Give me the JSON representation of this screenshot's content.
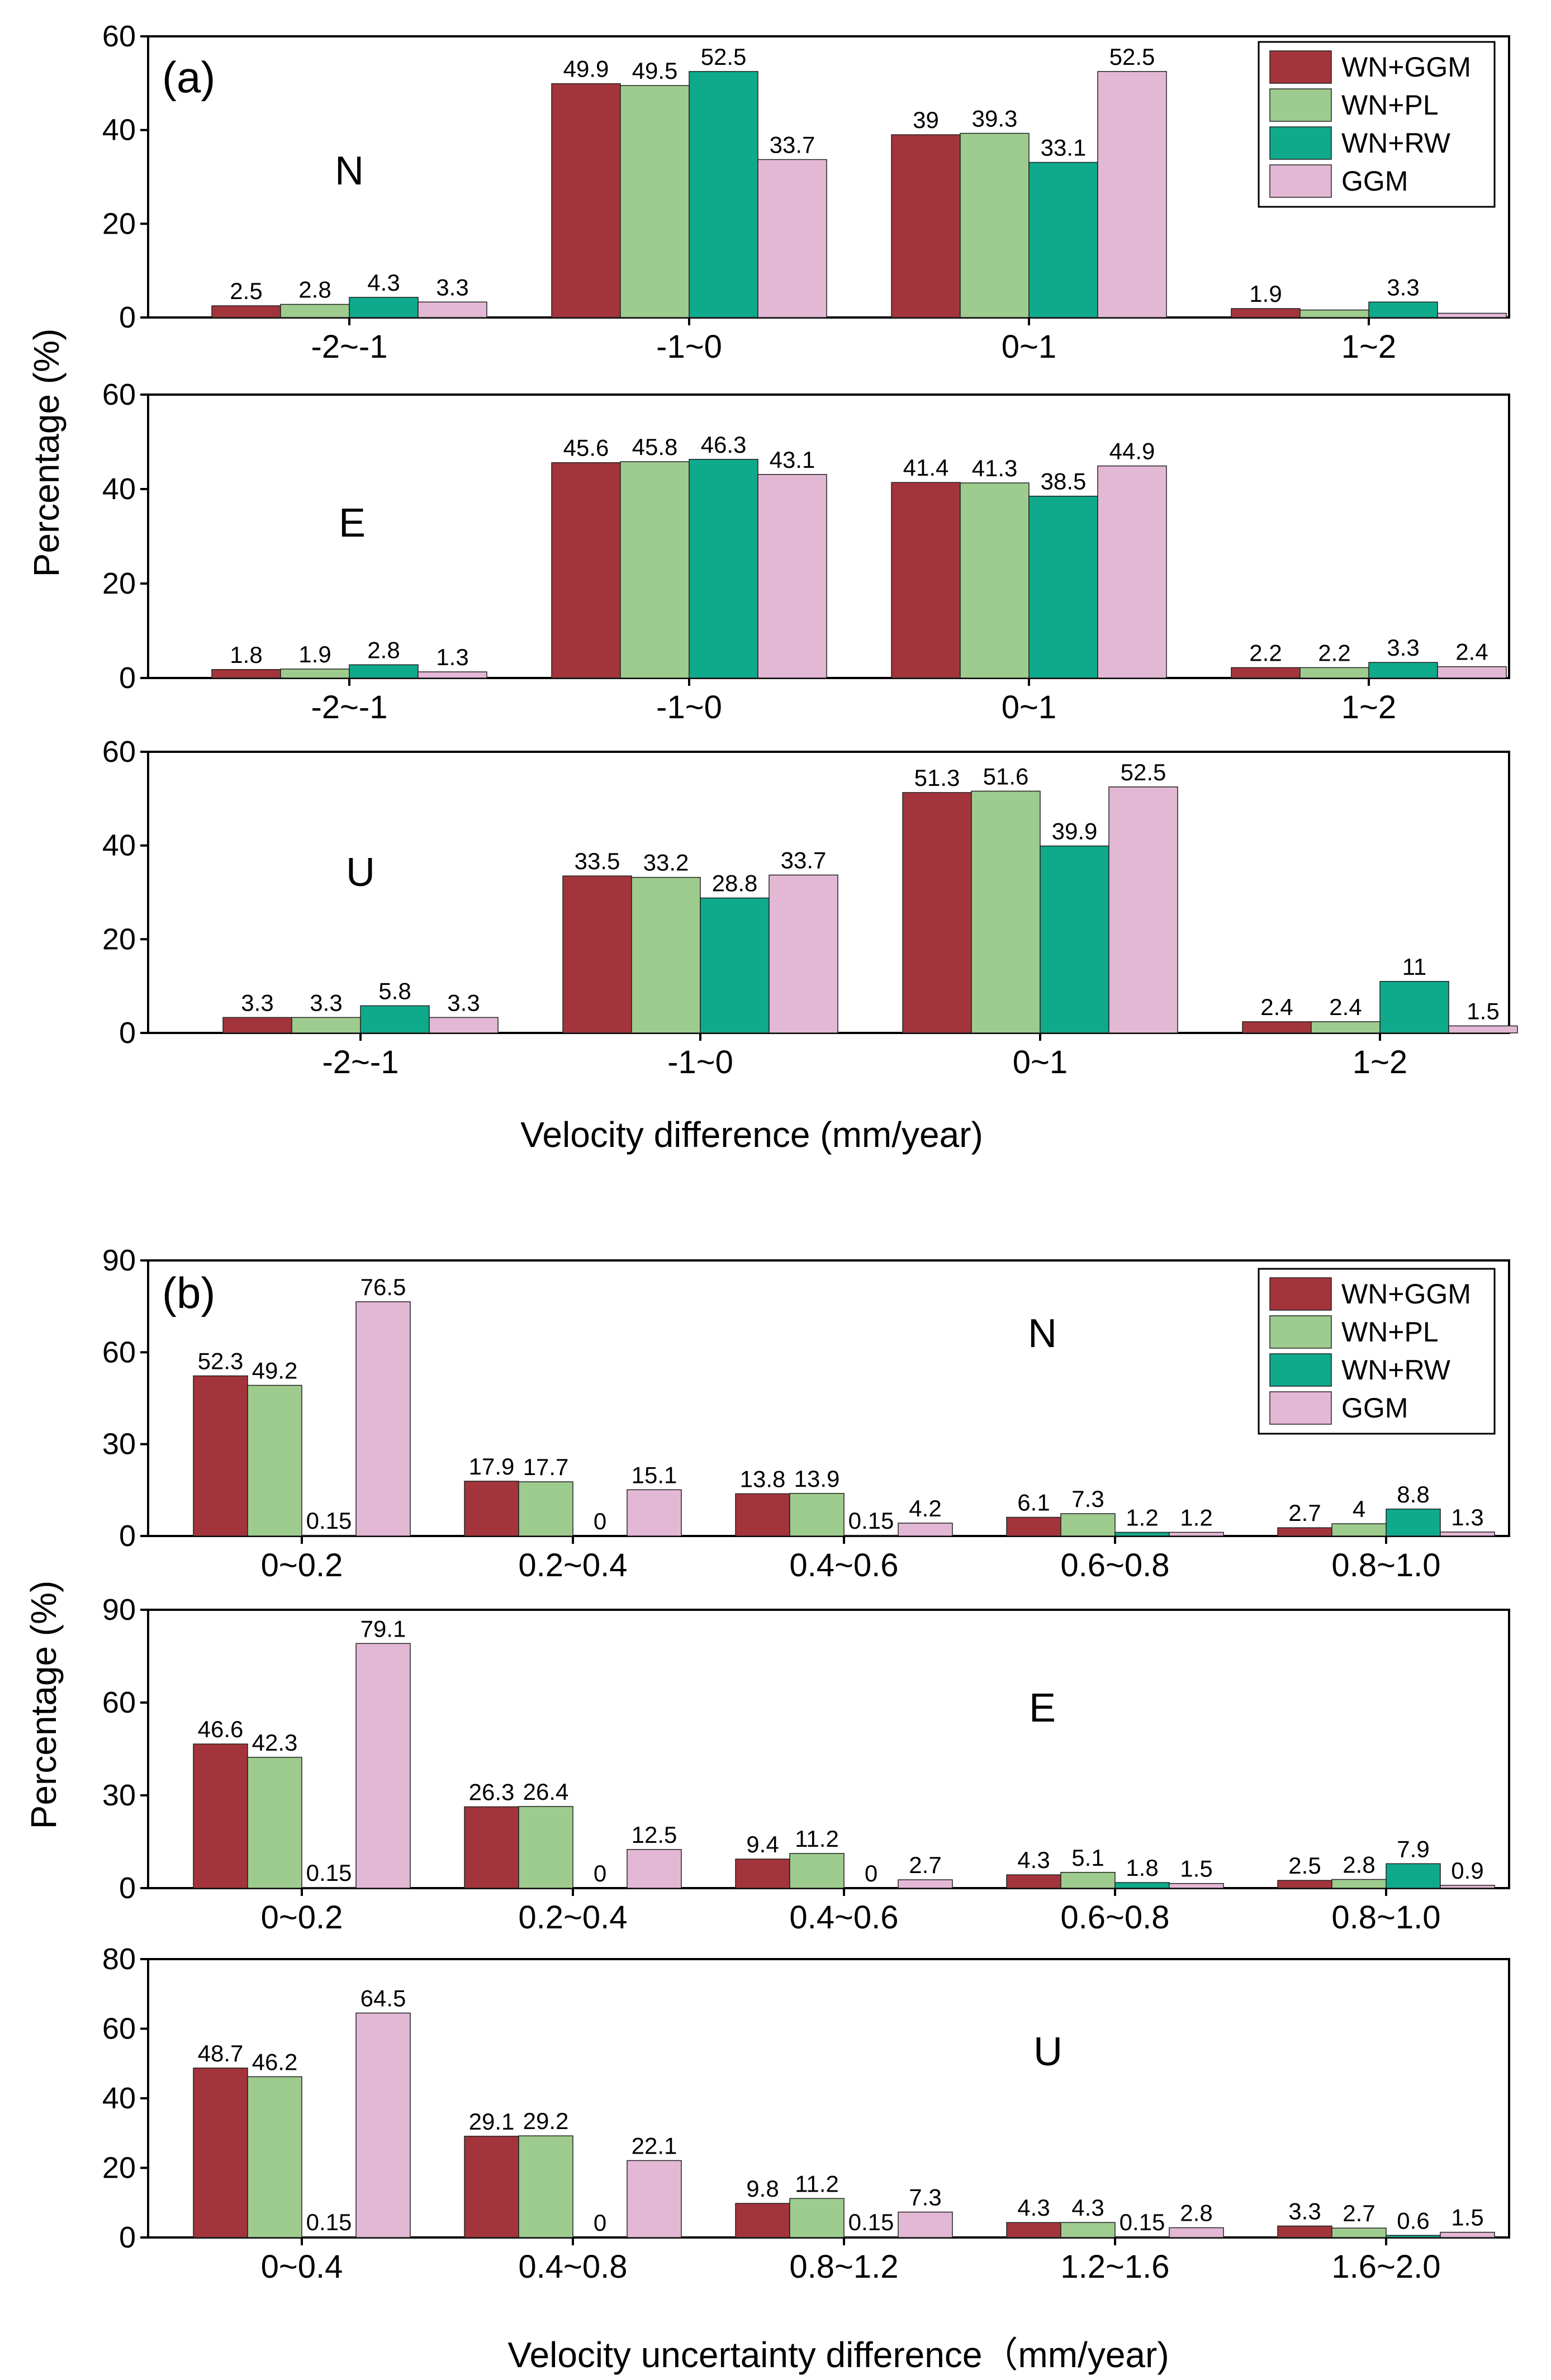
{
  "colors": {
    "WN+GGM": "#a3343b",
    "WN+PL": "#9ecb8e",
    "WN+RW": "#0fa98b",
    "GGM": "#e3b8d5"
  },
  "chart_data": [
    {
      "type": "bar",
      "figure": "(a)",
      "component": "N",
      "show_legend": true,
      "categories": [
        "-2~-1",
        "-1~0",
        "0~1",
        "1~2"
      ],
      "ylim": [
        0,
        60
      ],
      "yticks": [
        0,
        20,
        40,
        60
      ],
      "series": [
        {
          "name": "WN+GGM",
          "values": [
            2.5,
            49.9,
            39,
            1.9
          ]
        },
        {
          "name": "WN+PL",
          "values": [
            2.8,
            49.5,
            39.3,
            1.6
          ]
        },
        {
          "name": "WN+RW",
          "values": [
            4.3,
            52.5,
            33.1,
            3.3
          ]
        },
        {
          "name": "GGM",
          "values": [
            3.3,
            33.7,
            52.5,
            0.9
          ]
        }
      ],
      "labels": [
        [
          "2.5",
          "49.9",
          "39",
          "1.9"
        ],
        [
          "2.8",
          "49.5",
          "39.3",
          ""
        ],
        [
          "4.3",
          "52.5",
          "33.1",
          "3.3"
        ],
        [
          "3.3",
          "33.7",
          "52.5",
          ""
        ]
      ]
    },
    {
      "type": "bar",
      "figure": "(a)",
      "component": "E",
      "categories": [
        "-2~-1",
        "-1~0",
        "0~1",
        "1~2"
      ],
      "ylim": [
        0,
        60
      ],
      "yticks": [
        0,
        20,
        40,
        60
      ],
      "series": [
        {
          "name": "WN+GGM",
          "values": [
            1.8,
            45.6,
            41.4,
            2.2
          ]
        },
        {
          "name": "WN+PL",
          "values": [
            1.9,
            45.8,
            41.3,
            2.2
          ]
        },
        {
          "name": "WN+RW",
          "values": [
            2.8,
            46.3,
            38.5,
            3.3
          ]
        },
        {
          "name": "GGM",
          "values": [
            1.3,
            43.1,
            44.9,
            2.4
          ]
        }
      ],
      "labels": [
        [
          "1.8",
          "45.6",
          "41.4",
          "2.2"
        ],
        [
          "1.9",
          "45.8",
          "41.3",
          "2.2"
        ],
        [
          "2.8",
          "46.3",
          "38.5",
          "3.3"
        ],
        [
          "1.3",
          "43.1",
          "44.9",
          "2.4"
        ]
      ]
    },
    {
      "type": "bar",
      "figure": "(a)",
      "component": "U",
      "categories": [
        "-2~-1",
        "-1~0",
        "0~1",
        "1~2"
      ],
      "ylim": [
        0,
        60
      ],
      "yticks": [
        0,
        20,
        40,
        60
      ],
      "series": [
        {
          "name": "WN+GGM",
          "values": [
            3.3,
            33.5,
            51.3,
            2.4
          ]
        },
        {
          "name": "WN+PL",
          "values": [
            3.3,
            33.2,
            51.6,
            2.4
          ]
        },
        {
          "name": "WN+RW",
          "values": [
            5.8,
            28.8,
            39.9,
            11
          ]
        },
        {
          "name": "GGM",
          "values": [
            3.3,
            33.7,
            52.5,
            1.5
          ]
        }
      ],
      "labels": [
        [
          "3.3",
          "33.5",
          "51.3",
          "2.4"
        ],
        [
          "3.3",
          "33.2",
          "51.6",
          "2.4"
        ],
        [
          "5.8",
          "28.8",
          "39.9",
          "11"
        ],
        [
          "3.3",
          "33.7",
          "52.5",
          "1.5"
        ]
      ]
    },
    {
      "type": "bar",
      "figure": "(b)",
      "component": "N",
      "show_legend": true,
      "categories": [
        "0~0.2",
        "0.2~0.4",
        "0.4~0.6",
        "0.6~0.8",
        "0.8~1.0"
      ],
      "ylim": [
        0,
        90
      ],
      "yticks": [
        0,
        30,
        60,
        90
      ],
      "series": [
        {
          "name": "WN+GGM",
          "values": [
            52.3,
            17.9,
            13.8,
            6.1,
            2.7
          ]
        },
        {
          "name": "WN+PL",
          "values": [
            49.2,
            17.7,
            13.9,
            7.3,
            4
          ]
        },
        {
          "name": "WN+RW",
          "values": [
            0.15,
            0,
            0.15,
            1.2,
            8.8
          ]
        },
        {
          "name": "GGM",
          "values": [
            76.5,
            15.1,
            4.2,
            1.2,
            1.3
          ]
        }
      ],
      "labels": [
        [
          "52.3",
          "17.9",
          "13.8",
          "6.1",
          "2.7"
        ],
        [
          "49.2",
          "17.7",
          "13.9",
          "7.3",
          "4"
        ],
        [
          "0.15",
          "0",
          "0.15",
          "1.2",
          "8.8"
        ],
        [
          "76.5",
          "15.1",
          "4.2",
          "1.2",
          "1.3"
        ]
      ]
    },
    {
      "type": "bar",
      "figure": "(b)",
      "component": "E",
      "categories": [
        "0~0.2",
        "0.2~0.4",
        "0.4~0.6",
        "0.6~0.8",
        "0.8~1.0"
      ],
      "ylim": [
        0,
        90
      ],
      "yticks": [
        0,
        30,
        60,
        90
      ],
      "series": [
        {
          "name": "WN+GGM",
          "values": [
            46.6,
            26.3,
            9.4,
            4.3,
            2.5
          ]
        },
        {
          "name": "WN+PL",
          "values": [
            42.3,
            26.4,
            11.2,
            5.1,
            2.8
          ]
        },
        {
          "name": "WN+RW",
          "values": [
            0.15,
            0,
            0,
            1.8,
            7.9
          ]
        },
        {
          "name": "GGM",
          "values": [
            79.1,
            12.5,
            2.7,
            1.5,
            0.9
          ]
        }
      ],
      "labels": [
        [
          "46.6",
          "26.3",
          "9.4",
          "4.3",
          "2.5"
        ],
        [
          "42.3",
          "26.4",
          "11.2",
          "5.1",
          "2.8"
        ],
        [
          "0.15",
          "0",
          "0",
          "1.8",
          "7.9"
        ],
        [
          "79.1",
          "12.5",
          "2.7",
          "1.5",
          "0.9"
        ]
      ]
    },
    {
      "type": "bar",
      "figure": "(b)",
      "component": "U",
      "categories": [
        "0~0.4",
        "0.4~0.8",
        "0.8~1.2",
        "1.2~1.6",
        "1.6~2.0"
      ],
      "ylim": [
        0,
        80
      ],
      "yticks": [
        0,
        20,
        40,
        60,
        80
      ],
      "series": [
        {
          "name": "WN+GGM",
          "values": [
            48.7,
            29.1,
            9.8,
            4.3,
            3.3
          ]
        },
        {
          "name": "WN+PL",
          "values": [
            46.2,
            29.2,
            11.2,
            4.3,
            2.7
          ]
        },
        {
          "name": "WN+RW",
          "values": [
            0.15,
            0,
            0.15,
            0.15,
            0.6
          ]
        },
        {
          "name": "GGM",
          "values": [
            64.5,
            22.1,
            7.3,
            2.8,
            1.5
          ]
        }
      ],
      "labels": [
        [
          "48.7",
          "29.1",
          "9.8",
          "4.3",
          "3.3"
        ],
        [
          "46.2",
          "29.2",
          "11.2",
          "4.3",
          "2.7"
        ],
        [
          "0.15",
          "0",
          "0.15",
          "0.15",
          "0.6"
        ],
        [
          "64.5",
          "22.1",
          "7.3",
          "2.8",
          "1.5"
        ]
      ]
    }
  ],
  "figures": {
    "a": {
      "label": "(a)",
      "ylabel": "Percentage (%)",
      "xlabel": "Velocity difference (mm/year)"
    },
    "b": {
      "label": "(b)",
      "ylabel": "Percentage (%)",
      "xlabel": "Velocity uncertainty difference（mm/year)"
    }
  }
}
